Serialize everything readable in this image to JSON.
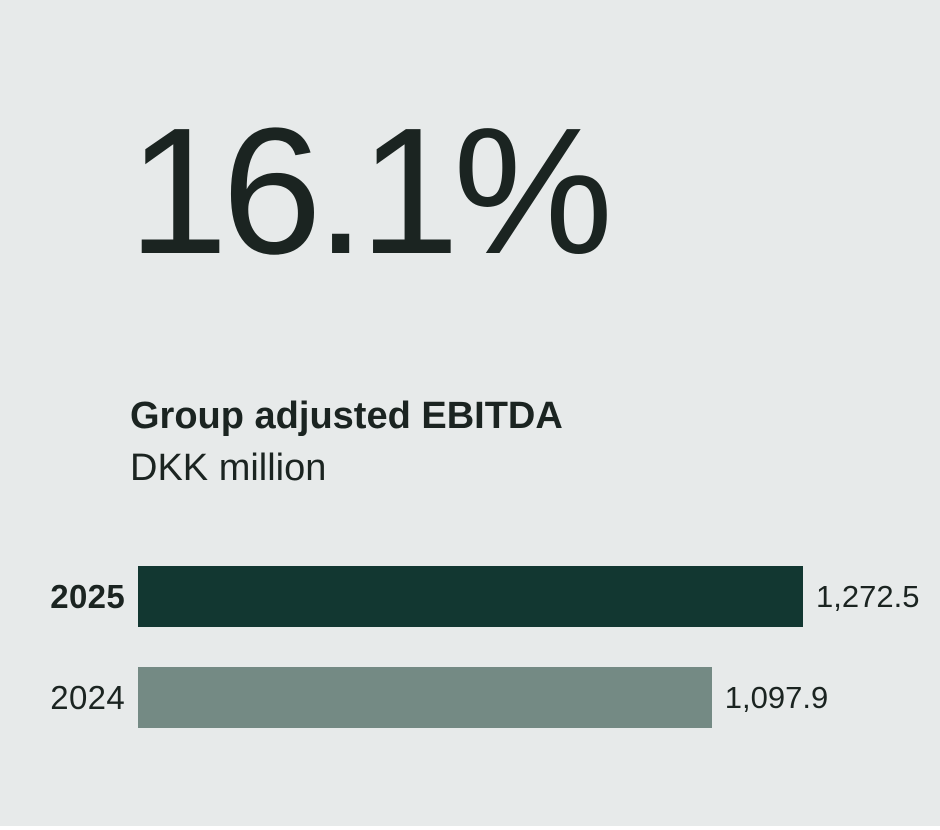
{
  "headline": "16.1%",
  "title": "Group adjusted EBITDA",
  "subtitle": "DKK million",
  "colors": {
    "background": "#e7eaea",
    "text": "#1b2421",
    "bar_current": "#123731",
    "bar_previous": "#748a84"
  },
  "chart_data": {
    "type": "bar",
    "orientation": "horizontal",
    "title": "Group adjusted EBITDA",
    "unit": "DKK million",
    "categories": [
      "2025",
      "2024"
    ],
    "values": [
      1272.5,
      1097.9
    ],
    "value_labels": [
      "1,272.5",
      "1,097.9"
    ],
    "bar_colors": [
      "#123731",
      "#748a84"
    ],
    "xlim": [
      0,
      1272.5
    ],
    "grid": false,
    "legend": false,
    "headline_metric": "16.1%"
  }
}
